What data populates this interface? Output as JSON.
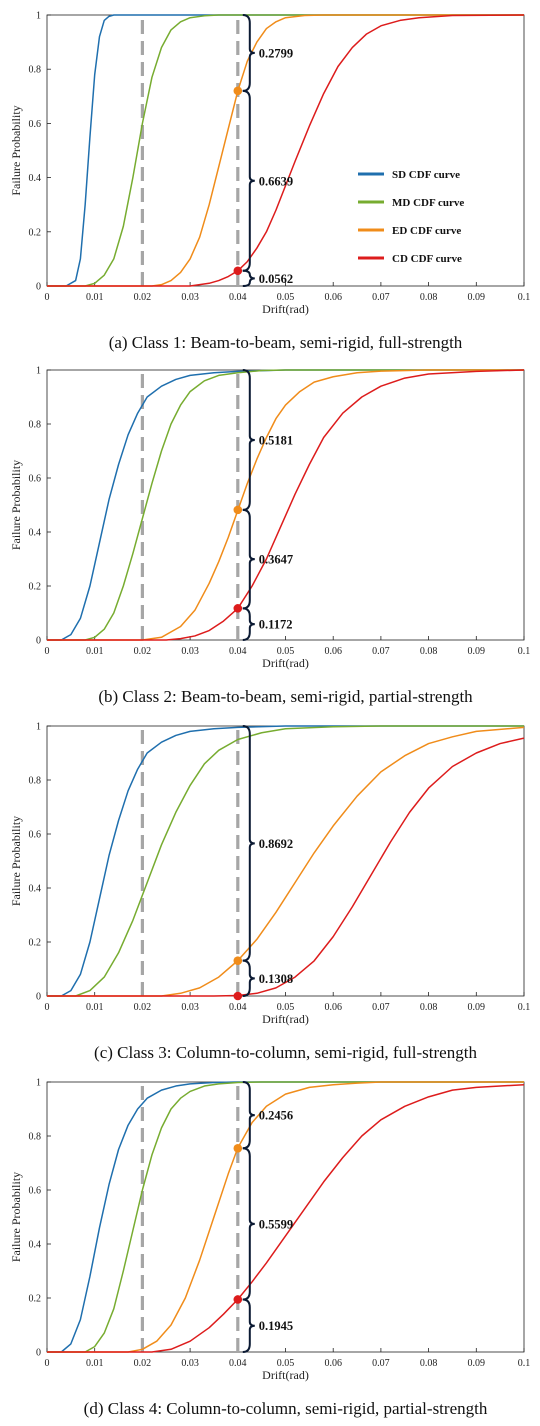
{
  "colors": {
    "SD": "#1f6fae",
    "MD": "#77ac30",
    "ED": "#f08c1a",
    "CD": "#dd1c1c",
    "dashed": "#a6a6a6",
    "brace": "#0b1a33",
    "axis": "#222222"
  },
  "legend": {
    "items": [
      {
        "key": "SD",
        "label": "SD CDF curve"
      },
      {
        "key": "MD",
        "label": "MD CDF curve"
      },
      {
        "key": "ED",
        "label": "ED CDF curve"
      },
      {
        "key": "CD",
        "label": "CD CDF curve"
      }
    ]
  },
  "chart_data": [
    {
      "type": "line",
      "caption": "(a) Class 1: Beam-to-beam, semi-rigid, full-strength",
      "xlabel": "Drift(rad)",
      "ylabel": "Failure Probability",
      "xlim": [
        0,
        0.1
      ],
      "ylim": [
        0,
        1
      ],
      "xticks": [
        "0",
        "0.01",
        "0.02",
        "0.03",
        "0.04",
        "0.05",
        "0.06",
        "0.07",
        "0.08",
        "0.09",
        "0.1"
      ],
      "yticks": [
        "0",
        "0.2",
        "0.4",
        "0.6",
        "0.8",
        "1"
      ],
      "dashed_x": [
        0.02,
        0.04
      ],
      "show_legend": true,
      "series": [
        {
          "name": "SD CDF curve",
          "key": "SD",
          "x": [
            0,
            0.004,
            0.006,
            0.007,
            0.008,
            0.009,
            0.01,
            0.011,
            0.012,
            0.013,
            0.014,
            0.016,
            0.02,
            0.1
          ],
          "y": [
            0,
            0,
            0.02,
            0.1,
            0.3,
            0.55,
            0.78,
            0.92,
            0.98,
            0.995,
            1,
            1,
            1,
            1
          ]
        },
        {
          "name": "MD CDF curve",
          "key": "MD",
          "x": [
            0,
            0.008,
            0.01,
            0.012,
            0.014,
            0.016,
            0.018,
            0.02,
            0.022,
            0.024,
            0.026,
            0.028,
            0.03,
            0.033,
            0.036,
            0.04,
            0.1
          ],
          "y": [
            0,
            0,
            0.01,
            0.04,
            0.1,
            0.22,
            0.4,
            0.6,
            0.77,
            0.88,
            0.945,
            0.975,
            0.99,
            0.997,
            1,
            1,
            1
          ]
        },
        {
          "name": "ED CDF curve",
          "key": "ED",
          "x": [
            0,
            0.022,
            0.024,
            0.026,
            0.028,
            0.03,
            0.032,
            0.034,
            0.036,
            0.038,
            0.04,
            0.042,
            0.044,
            0.046,
            0.048,
            0.05,
            0.054,
            0.058,
            0.1
          ],
          "y": [
            0,
            0,
            0.005,
            0.02,
            0.05,
            0.1,
            0.18,
            0.3,
            0.44,
            0.58,
            0.72,
            0.83,
            0.9,
            0.95,
            0.975,
            0.99,
            0.998,
            1,
            1
          ]
        },
        {
          "name": "CD CDF curve",
          "key": "CD",
          "x": [
            0,
            0.03,
            0.032,
            0.034,
            0.036,
            0.038,
            0.04,
            0.042,
            0.044,
            0.046,
            0.048,
            0.05,
            0.052,
            0.055,
            0.058,
            0.061,
            0.064,
            0.067,
            0.07,
            0.074,
            0.078,
            0.085,
            0.1
          ],
          "y": [
            0,
            0,
            0.005,
            0.01,
            0.02,
            0.035,
            0.056,
            0.09,
            0.14,
            0.2,
            0.28,
            0.37,
            0.46,
            0.59,
            0.71,
            0.81,
            0.88,
            0.93,
            0.96,
            0.98,
            0.99,
            0.998,
            1
          ]
        }
      ],
      "points": [
        {
          "key": "ED",
          "x": 0.04,
          "y": 0.7201
        },
        {
          "key": "CD",
          "x": 0.04,
          "y": 0.0562
        }
      ],
      "braces": [
        {
          "from": 0.7201,
          "to": 1.0,
          "label": "0.2799"
        },
        {
          "from": 0.0562,
          "to": 0.7201,
          "label": "0.6639"
        },
        {
          "from": 0.0,
          "to": 0.0562,
          "label": "0.0562"
        }
      ]
    },
    {
      "type": "line",
      "caption": "(b) Class 2: Beam-to-beam, semi-rigid, partial-strength",
      "xlabel": "Drift(rad)",
      "ylabel": "Failure Probability",
      "xlim": [
        0,
        0.1
      ],
      "ylim": [
        0,
        1
      ],
      "xticks": [
        "0",
        "0.01",
        "0.02",
        "0.03",
        "0.04",
        "0.05",
        "0.06",
        "0.07",
        "0.08",
        "0.09",
        "0.1"
      ],
      "yticks": [
        "0",
        "0.2",
        "0.4",
        "0.6",
        "0.8",
        "1"
      ],
      "dashed_x": [
        0.02,
        0.04
      ],
      "show_legend": false,
      "series": [
        {
          "name": "SD CDF curve",
          "key": "SD",
          "x": [
            0,
            0.003,
            0.005,
            0.007,
            0.009,
            0.011,
            0.013,
            0.015,
            0.017,
            0.019,
            0.021,
            0.024,
            0.027,
            0.03,
            0.035,
            0.04,
            0.05,
            0.1
          ],
          "y": [
            0,
            0,
            0.02,
            0.08,
            0.2,
            0.36,
            0.52,
            0.65,
            0.76,
            0.84,
            0.9,
            0.94,
            0.965,
            0.98,
            0.99,
            0.995,
            1,
            1
          ]
        },
        {
          "name": "MD CDF curve",
          "key": "MD",
          "x": [
            0,
            0.008,
            0.01,
            0.012,
            0.014,
            0.016,
            0.018,
            0.02,
            0.022,
            0.024,
            0.026,
            0.028,
            0.03,
            0.033,
            0.036,
            0.04,
            0.045,
            0.05,
            0.1
          ],
          "y": [
            0,
            0,
            0.01,
            0.04,
            0.1,
            0.2,
            0.32,
            0.45,
            0.58,
            0.7,
            0.8,
            0.87,
            0.92,
            0.96,
            0.98,
            0.99,
            0.998,
            1,
            1
          ]
        },
        {
          "name": "ED CDF curve",
          "key": "ED",
          "x": [
            0,
            0.02,
            0.024,
            0.028,
            0.031,
            0.034,
            0.036,
            0.038,
            0.04,
            0.042,
            0.044,
            0.046,
            0.048,
            0.05,
            0.053,
            0.056,
            0.06,
            0.065,
            0.07,
            0.08,
            0.1
          ],
          "y": [
            0,
            0,
            0.01,
            0.05,
            0.11,
            0.21,
            0.29,
            0.38,
            0.48,
            0.58,
            0.67,
            0.75,
            0.82,
            0.87,
            0.92,
            0.955,
            0.975,
            0.99,
            0.996,
            1,
            1
          ]
        },
        {
          "name": "CD CDF curve",
          "key": "CD",
          "x": [
            0,
            0.025,
            0.028,
            0.031,
            0.034,
            0.037,
            0.04,
            0.043,
            0.046,
            0.049,
            0.052,
            0.055,
            0.058,
            0.062,
            0.066,
            0.07,
            0.075,
            0.08,
            0.09,
            0.1
          ],
          "y": [
            0,
            0,
            0.005,
            0.015,
            0.035,
            0.07,
            0.117,
            0.2,
            0.3,
            0.42,
            0.54,
            0.65,
            0.75,
            0.84,
            0.9,
            0.94,
            0.97,
            0.985,
            0.995,
            1
          ]
        }
      ],
      "points": [
        {
          "key": "ED",
          "x": 0.04,
          "y": 0.4819
        },
        {
          "key": "CD",
          "x": 0.04,
          "y": 0.1172
        }
      ],
      "braces": [
        {
          "from": 0.4819,
          "to": 1.0,
          "label": "0.5181"
        },
        {
          "from": 0.1172,
          "to": 0.4819,
          "label": "0.3647"
        },
        {
          "from": 0.0,
          "to": 0.1172,
          "label": "0.1172"
        }
      ]
    },
    {
      "type": "line",
      "caption": "(c) Class 3: Column-to-column, semi-rigid, full-strength",
      "xlabel": "Drift(rad)",
      "ylabel": "Failure Probability",
      "xlim": [
        0,
        0.1
      ],
      "ylim": [
        0,
        1
      ],
      "xticks": [
        "0",
        "0.01",
        "0.02",
        "0.03",
        "0.04",
        "0.05",
        "0.06",
        "0.07",
        "0.08",
        "0.09",
        "0.1"
      ],
      "yticks": [
        "0",
        "0.2",
        "0.4",
        "0.6",
        "0.8",
        "1"
      ],
      "dashed_x": [
        0.02,
        0.04
      ],
      "show_legend": false,
      "series": [
        {
          "name": "SD CDF curve",
          "key": "SD",
          "x": [
            0,
            0.003,
            0.005,
            0.007,
            0.009,
            0.011,
            0.013,
            0.015,
            0.017,
            0.019,
            0.021,
            0.024,
            0.027,
            0.03,
            0.035,
            0.04,
            0.05,
            0.1
          ],
          "y": [
            0,
            0,
            0.02,
            0.08,
            0.2,
            0.36,
            0.52,
            0.65,
            0.76,
            0.84,
            0.9,
            0.94,
            0.965,
            0.98,
            0.99,
            0.995,
            1,
            1
          ]
        },
        {
          "name": "MD CDF curve",
          "key": "MD",
          "x": [
            0,
            0.006,
            0.009,
            0.012,
            0.015,
            0.018,
            0.021,
            0.024,
            0.027,
            0.03,
            0.033,
            0.036,
            0.04,
            0.045,
            0.05,
            0.06,
            0.07,
            0.1
          ],
          "y": [
            0,
            0,
            0.02,
            0.07,
            0.16,
            0.28,
            0.42,
            0.56,
            0.68,
            0.78,
            0.86,
            0.91,
            0.95,
            0.975,
            0.99,
            0.997,
            1,
            1
          ]
        },
        {
          "name": "ED CDF curve",
          "key": "ED",
          "x": [
            0,
            0.024,
            0.028,
            0.032,
            0.036,
            0.04,
            0.044,
            0.048,
            0.052,
            0.056,
            0.06,
            0.065,
            0.07,
            0.075,
            0.08,
            0.085,
            0.09,
            0.1
          ],
          "y": [
            0,
            0,
            0.01,
            0.03,
            0.07,
            0.131,
            0.21,
            0.31,
            0.42,
            0.53,
            0.63,
            0.74,
            0.83,
            0.89,
            0.935,
            0.96,
            0.98,
            0.995
          ]
        },
        {
          "name": "CD CDF curve",
          "key": "CD",
          "x": [
            0,
            0.035,
            0.04,
            0.044,
            0.048,
            0.052,
            0.056,
            0.06,
            0.064,
            0.068,
            0.072,
            0.076,
            0.08,
            0.085,
            0.09,
            0.095,
            0.1
          ],
          "y": [
            0,
            0,
            0.002,
            0.01,
            0.03,
            0.07,
            0.13,
            0.22,
            0.33,
            0.45,
            0.57,
            0.68,
            0.77,
            0.85,
            0.9,
            0.935,
            0.955
          ]
        }
      ],
      "points": [
        {
          "key": "ED",
          "x": 0.04,
          "y": 0.1308
        },
        {
          "key": "CD",
          "x": 0.04,
          "y": 0.0
        }
      ],
      "braces": [
        {
          "from": 0.1308,
          "to": 1.0,
          "label": "0.8692"
        },
        {
          "from": 0.0,
          "to": 0.1308,
          "label": "0.1308"
        }
      ]
    },
    {
      "type": "line",
      "caption": "(d) Class 4: Column-to-column, semi-rigid, partial-strength",
      "xlabel": "Drift(rad)",
      "ylabel": "Failure Probability",
      "xlim": [
        0,
        0.1
      ],
      "ylim": [
        0,
        1
      ],
      "xticks": [
        "0",
        "0.01",
        "0.02",
        "0.03",
        "0.04",
        "0.05",
        "0.06",
        "0.07",
        "0.08",
        "0.09",
        "0.1"
      ],
      "yticks": [
        "0",
        "0.2",
        "0.4",
        "0.6",
        "0.8",
        "1"
      ],
      "dashed_x": [
        0.02,
        0.04
      ],
      "show_legend": false,
      "series": [
        {
          "name": "SD CDF curve",
          "key": "SD",
          "x": [
            0,
            0.003,
            0.005,
            0.007,
            0.009,
            0.011,
            0.013,
            0.015,
            0.017,
            0.019,
            0.021,
            0.024,
            0.027,
            0.03,
            0.035,
            0.04,
            0.05,
            0.1
          ],
          "y": [
            0,
            0,
            0.03,
            0.12,
            0.28,
            0.46,
            0.62,
            0.75,
            0.84,
            0.9,
            0.94,
            0.97,
            0.985,
            0.993,
            0.998,
            1,
            1,
            1
          ]
        },
        {
          "name": "MD CDF curve",
          "key": "MD",
          "x": [
            0,
            0.008,
            0.01,
            0.012,
            0.014,
            0.016,
            0.018,
            0.02,
            0.022,
            0.024,
            0.026,
            0.028,
            0.03,
            0.033,
            0.036,
            0.04,
            0.045,
            0.05,
            0.1
          ],
          "y": [
            0,
            0,
            0.02,
            0.07,
            0.16,
            0.3,
            0.45,
            0.6,
            0.73,
            0.83,
            0.9,
            0.94,
            0.965,
            0.985,
            0.993,
            0.998,
            1,
            1,
            1
          ]
        },
        {
          "name": "ED CDF curve",
          "key": "ED",
          "x": [
            0,
            0.017,
            0.02,
            0.023,
            0.026,
            0.029,
            0.032,
            0.035,
            0.038,
            0.04,
            0.043,
            0.046,
            0.05,
            0.055,
            0.06,
            0.065,
            0.07,
            0.08,
            0.1
          ],
          "y": [
            0,
            0,
            0.01,
            0.04,
            0.1,
            0.2,
            0.34,
            0.5,
            0.66,
            0.756,
            0.85,
            0.91,
            0.955,
            0.98,
            0.99,
            0.996,
            1,
            1,
            1
          ]
        },
        {
          "name": "CD CDF curve",
          "key": "CD",
          "x": [
            0,
            0.022,
            0.026,
            0.03,
            0.034,
            0.037,
            0.04,
            0.043,
            0.046,
            0.05,
            0.054,
            0.058,
            0.062,
            0.066,
            0.07,
            0.075,
            0.08,
            0.085,
            0.09,
            0.1
          ],
          "y": [
            0,
            0,
            0.01,
            0.04,
            0.09,
            0.14,
            0.195,
            0.26,
            0.33,
            0.43,
            0.53,
            0.63,
            0.72,
            0.8,
            0.86,
            0.91,
            0.945,
            0.97,
            0.98,
            0.99
          ]
        }
      ],
      "points": [
        {
          "key": "ED",
          "x": 0.04,
          "y": 0.7544
        },
        {
          "key": "CD",
          "x": 0.04,
          "y": 0.1945
        }
      ],
      "braces": [
        {
          "from": 0.7544,
          "to": 1.0,
          "label": "0.2456"
        },
        {
          "from": 0.1945,
          "to": 0.7544,
          "label": "0.5599"
        },
        {
          "from": 0.0,
          "to": 0.1945,
          "label": "0.1945"
        }
      ]
    }
  ]
}
